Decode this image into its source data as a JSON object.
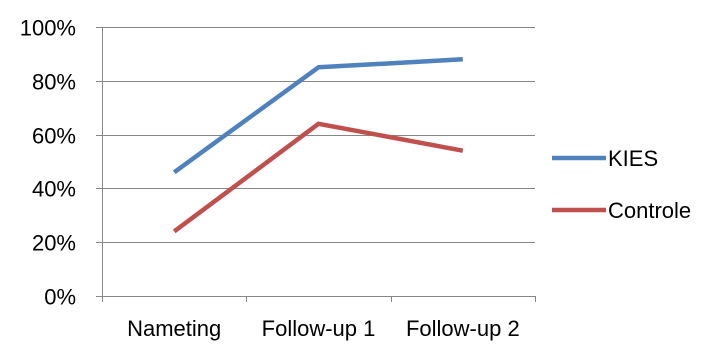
{
  "chart_data": {
    "type": "line",
    "categories": [
      "Nameting",
      "Follow-up 1",
      "Follow-up 2"
    ],
    "series": [
      {
        "name": "KIES",
        "values": [
          46,
          85,
          88
        ],
        "color": "#4F81BD"
      },
      {
        "name": "Controle",
        "values": [
          24,
          64,
          54
        ],
        "color": "#C0504D"
      }
    ],
    "y_ticks": [
      "0%",
      "20%",
      "40%",
      "60%",
      "80%",
      "100%"
    ],
    "ylim": [
      0,
      100
    ],
    "y_unit": "%",
    "grid": true,
    "legend": "right"
  }
}
